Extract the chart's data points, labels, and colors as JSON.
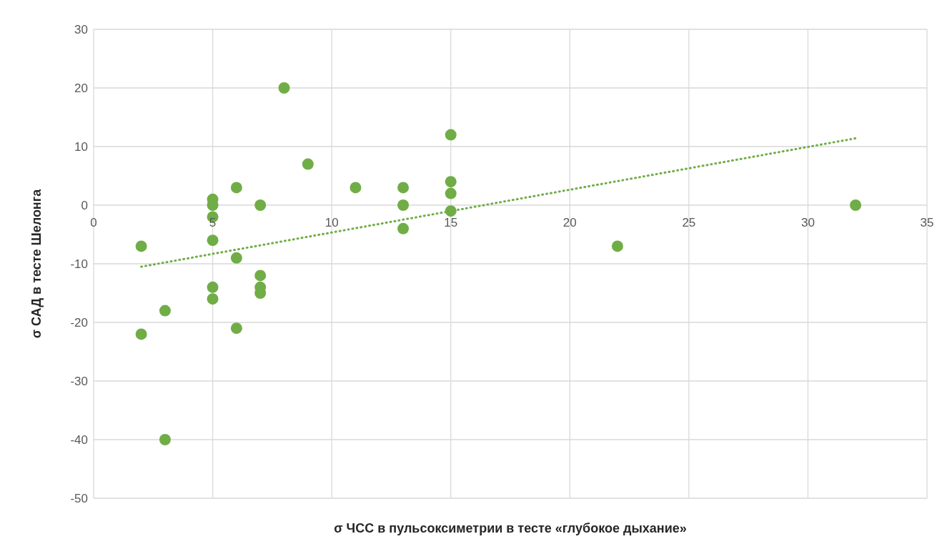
{
  "chart_data": {
    "type": "scatter",
    "xlabel": "σ ЧСС в пульсоксиметрии в тесте «глубокое дыхание»",
    "ylabel": "σ САД в тесте Шелонга",
    "xlim": [
      0,
      35
    ],
    "xticks": [
      0,
      5,
      10,
      15,
      20,
      25,
      30,
      35
    ],
    "ylim": [
      -50,
      30
    ],
    "yticks": [
      -50,
      -40,
      -30,
      -20,
      -10,
      0,
      10,
      20,
      30
    ],
    "grid": true,
    "series": [
      {
        "type": "scatter",
        "color": "#70ad47",
        "marker": "circle",
        "x": [
          2,
          2,
          3,
          3,
          5,
          5,
          5,
          5,
          5,
          5,
          6,
          6,
          6,
          7,
          7,
          7,
          7,
          8,
          9,
          11,
          13,
          13,
          13,
          15,
          15,
          15,
          15,
          22,
          32
        ],
        "values": [
          -7,
          -22,
          -18,
          -40,
          1,
          0,
          -2,
          -6,
          -14,
          -16,
          3,
          -9,
          -21,
          0,
          -12,
          -14,
          -15,
          20,
          7,
          3,
          3,
          0,
          -4,
          12,
          4,
          2,
          -1,
          -7,
          0
        ]
      },
      {
        "type": "line",
        "color": "#70ad47",
        "marker": "none",
        "line_style": "dotted",
        "x": [
          2,
          32
        ],
        "values": [
          -10.5,
          11.4
        ]
      }
    ]
  }
}
